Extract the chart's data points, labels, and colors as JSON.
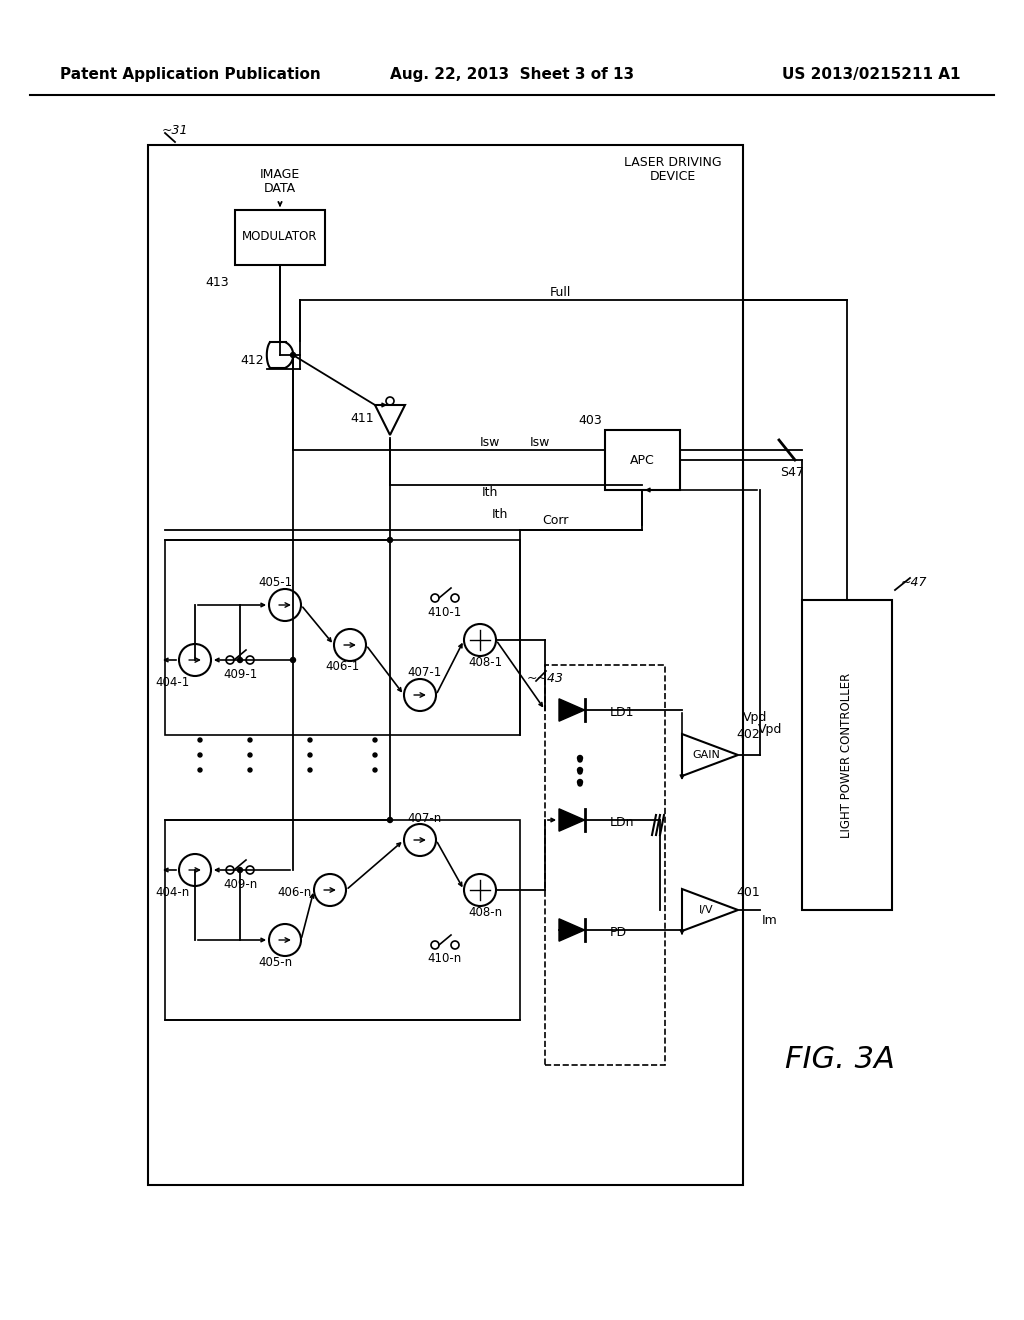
{
  "title_left": "Patent Application Publication",
  "title_center": "Aug. 22, 2013  Sheet 3 of 13",
  "title_right": "US 2013/0215211 A1",
  "fig_label": "FIG. 3A",
  "bg_color": "#ffffff",
  "line_color": "#000000",
  "header_fontsize": 11,
  "label_fontsize": 9,
  "fig_label_fontsize": 20
}
